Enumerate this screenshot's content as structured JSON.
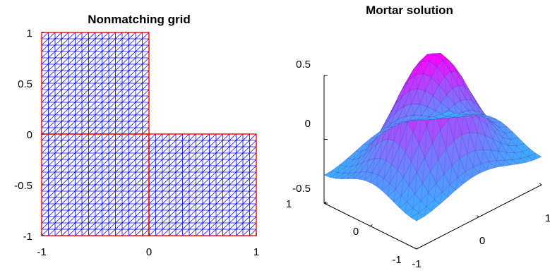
{
  "chart_data": [
    {
      "type": "mesh",
      "title": "Nonmatching grid",
      "xlim": [
        -1,
        1
      ],
      "ylim": [
        -1,
        1
      ],
      "x_ticks": [
        "-1",
        "0",
        "1"
      ],
      "y_ticks": [
        "1",
        "0.5",
        "0",
        "-0.5",
        "-1"
      ],
      "subdomains": [
        {
          "name": "top-left",
          "x": [
            -1,
            0
          ],
          "y": [
            0,
            1
          ],
          "divisions": 16
        },
        {
          "name": "bottom-left",
          "x": [
            -1,
            0
          ],
          "y": [
            -1,
            0
          ],
          "divisions": 16
        },
        {
          "name": "bottom-right",
          "x": [
            0,
            1
          ],
          "y": [
            -1,
            0
          ],
          "divisions": 16
        }
      ],
      "mesh_color": "#0000ff",
      "interface_color": "#ff0000"
    },
    {
      "type": "surface",
      "title": "Mortar solution",
      "x_ticks": [
        "-1",
        "0",
        "1"
      ],
      "y_ticks": [
        "-1",
        "0",
        "1"
      ],
      "z_ticks": [
        "0.5",
        "0",
        "-0.5"
      ],
      "zlim": [
        -0.5,
        0.5
      ],
      "colormap": [
        "#1ec8ff",
        "#ff00ff"
      ]
    }
  ]
}
